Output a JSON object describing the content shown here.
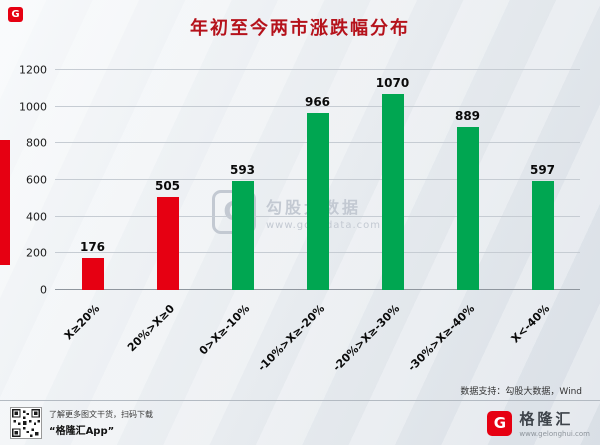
{
  "header": {
    "corner_logo_letter": "G"
  },
  "chart_data": {
    "type": "bar",
    "title": "年初至今两市涨跌幅分布",
    "categories": [
      "X≥20%",
      "20%>X≥0",
      "0>X≥-10%",
      "-10%>X≥-20%",
      "-20%>X≥-30%",
      "-30%>X≥-40%",
      "X<-40%"
    ],
    "values": [
      176,
      505,
      593,
      966,
      1070,
      889,
      597
    ],
    "bar_colors": [
      "#e60012",
      "#e60012",
      "#00a651",
      "#00a651",
      "#00a651",
      "#00a651",
      "#00a651"
    ],
    "yticks": [
      0,
      200,
      400,
      600,
      800,
      1000,
      1200
    ],
    "ylim": [
      0,
      1200
    ],
    "xlabel": "",
    "ylabel": "",
    "grid": true,
    "legend": false,
    "value_labels": true,
    "title_color": "#b5121b"
  },
  "watermark": {
    "logo_letter": "G",
    "brand": "勾股大数据",
    "url": "www.gogudata.com"
  },
  "source_note": "数据支持：勾股大数据，Wind",
  "footer": {
    "qr_caption_line1": "了解更多图文干货，扫码下载",
    "qr_caption_line2": "“格隆汇App”",
    "brand_logo_letter": "G",
    "brand_name": "格隆汇",
    "brand_url": "www.gelonghui.com"
  }
}
